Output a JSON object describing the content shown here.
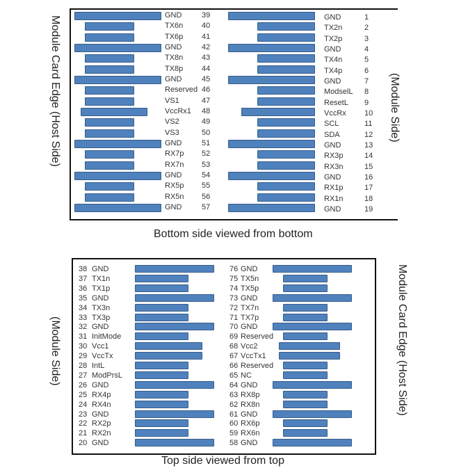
{
  "colors": {
    "pad_fill": "#4f81bd",
    "pad_border": "#385d8a",
    "frame": "#111111"
  },
  "bottom_side": {
    "caption": "Bottom side viewed from bottom",
    "left_side_label": "Module Card Edge (Host Side)",
    "right_side_label": "(Module Side)",
    "left_column": [
      {
        "num": "39",
        "name": "GND",
        "pad": "long"
      },
      {
        "num": "40",
        "name": "TX6n",
        "pad": "short"
      },
      {
        "num": "41",
        "name": "TX6p",
        "pad": "short"
      },
      {
        "num": "42",
        "name": "GND",
        "pad": "long"
      },
      {
        "num": "43",
        "name": "TX8n",
        "pad": "short"
      },
      {
        "num": "44",
        "name": "TX8p",
        "pad": "short"
      },
      {
        "num": "45",
        "name": "GND",
        "pad": "long"
      },
      {
        "num": "46",
        "name": "Reserved",
        "pad": "short"
      },
      {
        "num": "47",
        "name": "VS1",
        "pad": "short"
      },
      {
        "num": "48",
        "name": "VccRx1",
        "pad": "medium"
      },
      {
        "num": "49",
        "name": "VS2",
        "pad": "short"
      },
      {
        "num": "50",
        "name": "VS3",
        "pad": "short"
      },
      {
        "num": "51",
        "name": "GND",
        "pad": "long"
      },
      {
        "num": "52",
        "name": "RX7p",
        "pad": "short"
      },
      {
        "num": "53",
        "name": "RX7n",
        "pad": "short"
      },
      {
        "num": "54",
        "name": "GND",
        "pad": "long"
      },
      {
        "num": "55",
        "name": "RX5p",
        "pad": "short"
      },
      {
        "num": "56",
        "name": "RX5n",
        "pad": "short"
      },
      {
        "num": "57",
        "name": "GND",
        "pad": "long"
      }
    ],
    "right_column": [
      {
        "num": "1",
        "name": "GND",
        "pad": "long"
      },
      {
        "num": "2",
        "name": "TX2n",
        "pad": "short"
      },
      {
        "num": "3",
        "name": "TX2p",
        "pad": "short"
      },
      {
        "num": "4",
        "name": "GND",
        "pad": "long"
      },
      {
        "num": "5",
        "name": "TX4n",
        "pad": "short"
      },
      {
        "num": "6",
        "name": "TX4p",
        "pad": "short"
      },
      {
        "num": "7",
        "name": "GND",
        "pad": "long"
      },
      {
        "num": "8",
        "name": "ModselL",
        "pad": "short"
      },
      {
        "num": "9",
        "name": "ResetL",
        "pad": "short"
      },
      {
        "num": "10",
        "name": "VccRx",
        "pad": "medium"
      },
      {
        "num": "11",
        "name": "SCL",
        "pad": "short"
      },
      {
        "num": "12",
        "name": "SDA",
        "pad": "short"
      },
      {
        "num": "13",
        "name": "GND",
        "pad": "long"
      },
      {
        "num": "14",
        "name": "RX3p",
        "pad": "short"
      },
      {
        "num": "15",
        "name": "RX3n",
        "pad": "short"
      },
      {
        "num": "16",
        "name": "GND",
        "pad": "long"
      },
      {
        "num": "17",
        "name": "RX1p",
        "pad": "short"
      },
      {
        "num": "18",
        "name": "RX1n",
        "pad": "short"
      },
      {
        "num": "19",
        "name": "GND",
        "pad": "long"
      }
    ]
  },
  "top_side": {
    "caption": "Top side viewed from top",
    "left_side_label": "(Module Side)",
    "right_side_label": "Module Card Edge (Host Side)",
    "left_column": [
      {
        "num": "38",
        "name": "GND",
        "pad": "long"
      },
      {
        "num": "37",
        "name": "TX1n",
        "pad": "short"
      },
      {
        "num": "36",
        "name": "TX1p",
        "pad": "short"
      },
      {
        "num": "35",
        "name": "GND",
        "pad": "long"
      },
      {
        "num": "34",
        "name": "TX3n",
        "pad": "short"
      },
      {
        "num": "33",
        "name": "TX3p",
        "pad": "short"
      },
      {
        "num": "32",
        "name": "GND",
        "pad": "long"
      },
      {
        "num": "31",
        "name": "InitMode",
        "pad": "short"
      },
      {
        "num": "30",
        "name": "Vcc1",
        "pad": "medium"
      },
      {
        "num": "29",
        "name": "VccTx",
        "pad": "medium"
      },
      {
        "num": "28",
        "name": "IntL",
        "pad": "short"
      },
      {
        "num": "27",
        "name": "ModPrsL",
        "pad": "short"
      },
      {
        "num": "26",
        "name": "GND",
        "pad": "long"
      },
      {
        "num": "25",
        "name": "RX4p",
        "pad": "short"
      },
      {
        "num": "24",
        "name": "RX4n",
        "pad": "short"
      },
      {
        "num": "23",
        "name": "GND",
        "pad": "long"
      },
      {
        "num": "22",
        "name": "RX2p",
        "pad": "short"
      },
      {
        "num": "21",
        "name": "RX2n",
        "pad": "short"
      },
      {
        "num": "20",
        "name": "GND",
        "pad": "long"
      }
    ],
    "right_column": [
      {
        "num": "76",
        "name": "GND",
        "pad": "long"
      },
      {
        "num": "75",
        "name": "TX5n",
        "pad": "short"
      },
      {
        "num": "74",
        "name": "TX5p",
        "pad": "short"
      },
      {
        "num": "73",
        "name": "GND",
        "pad": "long"
      },
      {
        "num": "72",
        "name": "TX7n",
        "pad": "short"
      },
      {
        "num": "71",
        "name": "TX7p",
        "pad": "short"
      },
      {
        "num": "70",
        "name": "GND",
        "pad": "long"
      },
      {
        "num": "69",
        "name": "Reserved",
        "pad": "short"
      },
      {
        "num": "68",
        "name": "Vcc2",
        "pad": "medium"
      },
      {
        "num": "67",
        "name": "VccTx1",
        "pad": "medium"
      },
      {
        "num": "66",
        "name": "Reserved",
        "pad": "short"
      },
      {
        "num": "65",
        "name": "NC",
        "pad": "short"
      },
      {
        "num": "64",
        "name": "GND",
        "pad": "long"
      },
      {
        "num": "63",
        "name": "RX8p",
        "pad": "short"
      },
      {
        "num": "62",
        "name": "RX8n",
        "pad": "short"
      },
      {
        "num": "61",
        "name": "GND",
        "pad": "long"
      },
      {
        "num": "60",
        "name": "RX6p",
        "pad": "short"
      },
      {
        "num": "59",
        "name": "RX6n",
        "pad": "short"
      },
      {
        "num": "58",
        "name": "GND",
        "pad": "long"
      }
    ]
  }
}
